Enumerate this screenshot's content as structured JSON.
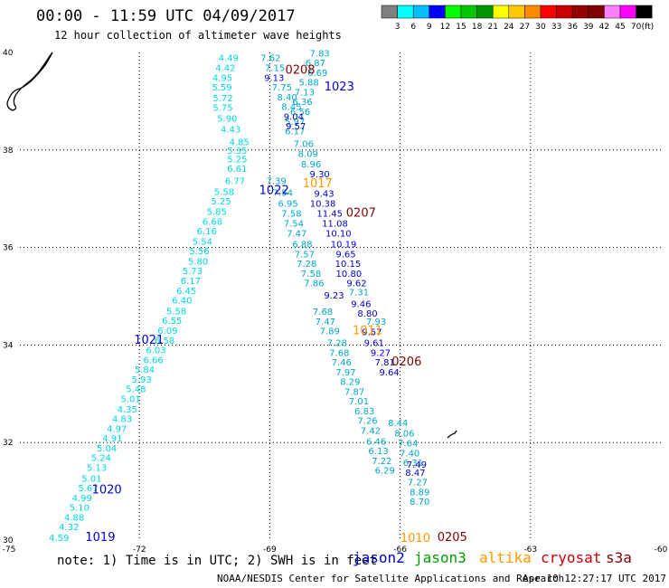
{
  "title": "00:00 - 11:59 UTC 04/09/2017",
  "subtitle": "12 hour collection of altimeter wave heights",
  "note": "note: 1) Time is in UTC; 2) SWH is in feet",
  "credit": "NOAA/NESDIS Center for Satellite Applications and Research",
  "timestamp": "Apr 10 12:27:17 UTC 2017",
  "color_scale": {
    "unit": "(ft)",
    "colors": [
      "#808080",
      "#00ffff",
      "#00bfff",
      "#0000ff",
      "#00ff00",
      "#00c800",
      "#009600",
      "#ffff00",
      "#ffc800",
      "#ff8c00",
      "#ff0000",
      "#c80000",
      "#960000",
      "#800000",
      "#ff80ff",
      "#ff00ff",
      "#000000"
    ],
    "labels": [
      "3",
      "6",
      "9",
      "12",
      "15",
      "18",
      "21",
      "24",
      "27",
      "30",
      "33",
      "36",
      "39",
      "42",
      "45",
      "70"
    ]
  },
  "satellites": [
    {
      "name": "jason2",
      "color": "#0000cc"
    },
    {
      "name": "jason3",
      "color": "#00a000"
    },
    {
      "name": "altika",
      "color": "#ff9900"
    },
    {
      "name": "cryosat",
      "color": "#cc0000"
    },
    {
      "name": "s3a",
      "color": "#800000"
    }
  ],
  "map": {
    "lon_ticks": [
      "-75",
      "-72",
      "-69",
      "-66",
      "-63",
      "-60"
    ],
    "lat_ticks": [
      "30",
      "32",
      "34",
      "36",
      "38",
      "40"
    ]
  },
  "tracks": [
    {
      "name": "track-cyan-descending",
      "color": "#00d8e0",
      "labels": [
        {
          "t": "4.49",
          "lon": -69.95,
          "lat": 39.82
        },
        {
          "t": "4.42",
          "lon": -70.02,
          "lat": 39.62
        },
        {
          "t": "4.95",
          "lon": -70.09,
          "lat": 39.42
        },
        {
          "t": "5.59",
          "lon": -70.1,
          "lat": 39.22
        },
        {
          "t": "5.72",
          "lon": -70.08,
          "lat": 39.0
        },
        {
          "t": "5.75",
          "lon": -70.08,
          "lat": 38.8
        },
        {
          "t": "5.90",
          "lon": -69.98,
          "lat": 38.58
        },
        {
          "t": "4.43",
          "lon": -69.9,
          "lat": 38.36
        },
        {
          "t": "4.85",
          "lon": -69.7,
          "lat": 38.1
        },
        {
          "t": "5.35",
          "lon": -69.75,
          "lat": 37.92
        },
        {
          "t": "5.25",
          "lon": -69.75,
          "lat": 37.75
        },
        {
          "t": "6.61",
          "lon": -69.75,
          "lat": 37.55
        },
        {
          "t": "6.77",
          "lon": -69.8,
          "lat": 37.3
        },
        {
          "t": "5.58",
          "lon": -70.05,
          "lat": 37.08
        },
        {
          "t": "5.25",
          "lon": -70.12,
          "lat": 36.88
        },
        {
          "t": "5.85",
          "lon": -70.22,
          "lat": 36.67
        },
        {
          "t": "6.68",
          "lon": -70.32,
          "lat": 36.47
        },
        {
          "t": "6.16",
          "lon": -70.45,
          "lat": 36.27
        },
        {
          "t": "5.54",
          "lon": -70.55,
          "lat": 36.06
        },
        {
          "t": "5.56",
          "lon": -70.62,
          "lat": 35.86
        },
        {
          "t": "5.80",
          "lon": -70.65,
          "lat": 35.65
        },
        {
          "t": "5.73",
          "lon": -70.78,
          "lat": 35.45
        },
        {
          "t": "6.17",
          "lon": -70.82,
          "lat": 35.25
        },
        {
          "t": "6.45",
          "lon": -70.92,
          "lat": 35.05
        },
        {
          "t": "6.40",
          "lon": -71.02,
          "lat": 34.85
        },
        {
          "t": "5.58",
          "lon": -71.15,
          "lat": 34.63
        },
        {
          "t": "6.55",
          "lon": -71.25,
          "lat": 34.43
        },
        {
          "t": "6.09",
          "lon": -71.35,
          "lat": 34.23
        },
        {
          "t": "6.58",
          "lon": -71.42,
          "lat": 34.03
        },
        {
          "t": "6.03",
          "lon": -71.62,
          "lat": 33.83
        },
        {
          "t": "6.66",
          "lon": -71.68,
          "lat": 33.63
        },
        {
          "t": "5.84",
          "lon": -71.88,
          "lat": 33.43
        },
        {
          "t": "5.93",
          "lon": -71.95,
          "lat": 33.23
        },
        {
          "t": "5.48",
          "lon": -72.08,
          "lat": 33.03
        },
        {
          "t": "5.01",
          "lon": -72.2,
          "lat": 32.83
        },
        {
          "t": "4.35",
          "lon": -72.28,
          "lat": 32.62
        },
        {
          "t": "4.83",
          "lon": -72.4,
          "lat": 32.42
        },
        {
          "t": "4.97",
          "lon": -72.52,
          "lat": 32.22
        },
        {
          "t": "4.91",
          "lon": -72.62,
          "lat": 32.02
        },
        {
          "t": "5.04",
          "lon": -72.75,
          "lat": 31.82
        },
        {
          "t": "5.24",
          "lon": -72.88,
          "lat": 31.62
        },
        {
          "t": "5.13",
          "lon": -72.98,
          "lat": 31.42
        },
        {
          "t": "5.01",
          "lon": -73.1,
          "lat": 31.2
        },
        {
          "t": "5.67",
          "lon": -73.18,
          "lat": 31.0
        },
        {
          "t": "4.99",
          "lon": -73.32,
          "lat": 30.8
        },
        {
          "t": "5.10",
          "lon": -73.38,
          "lat": 30.6
        },
        {
          "t": "4.88",
          "lon": -73.5,
          "lat": 30.4
        },
        {
          "t": "4.32",
          "lon": -73.62,
          "lat": 30.2
        },
        {
          "t": "4.59",
          "lon": -73.85,
          "lat": 29.98
        }
      ]
    },
    {
      "name": "track-cyan-ascending",
      "color": "#00a8c8",
      "labels": [
        {
          "t": "7.62",
          "lon": -68.98,
          "lat": 39.82
        },
        {
          "t": "7.15",
          "lon": -68.88,
          "lat": 39.62
        },
        {
          "t": "7.75",
          "lon": -68.72,
          "lat": 39.22
        },
        {
          "t": "8.40",
          "lon": -68.6,
          "lat": 39.02
        },
        {
          "t": "8.45",
          "lon": -68.5,
          "lat": 38.82
        },
        {
          "t": "7.06",
          "lon": -68.22,
          "lat": 38.06
        },
        {
          "t": "8.09",
          "lon": -68.12,
          "lat": 37.86
        },
        {
          "t": "8.96",
          "lon": -68.05,
          "lat": 37.64
        },
        {
          "t": "7.39",
          "lon": -68.85,
          "lat": 37.3
        },
        {
          "t": "7.54",
          "lon": -68.7,
          "lat": 37.06
        },
        {
          "t": "6.95",
          "lon": -68.58,
          "lat": 36.84
        },
        {
          "t": "7.58",
          "lon": -68.5,
          "lat": 36.63
        },
        {
          "t": "7.54",
          "lon": -68.45,
          "lat": 36.43
        },
        {
          "t": "7.47",
          "lon": -68.38,
          "lat": 36.22
        },
        {
          "t": "6.88",
          "lon": -68.25,
          "lat": 36.0
        },
        {
          "t": "7.57",
          "lon": -68.2,
          "lat": 35.8
        },
        {
          "t": "7.28",
          "lon": -68.15,
          "lat": 35.6
        },
        {
          "t": "7.58",
          "lon": -68.05,
          "lat": 35.4
        },
        {
          "t": "7.86",
          "lon": -67.98,
          "lat": 35.2
        },
        {
          "t": "7.68",
          "lon": -67.78,
          "lat": 34.62
        },
        {
          "t": "7.47",
          "lon": -67.72,
          "lat": 34.42
        },
        {
          "t": "7.89",
          "lon": -67.62,
          "lat": 34.22
        },
        {
          "t": "7.28",
          "lon": -67.45,
          "lat": 33.98
        },
        {
          "t": "7.68",
          "lon": -67.4,
          "lat": 33.78
        },
        {
          "t": "7.46",
          "lon": -67.35,
          "lat": 33.58
        },
        {
          "t": "7.97",
          "lon": -67.25,
          "lat": 33.38
        },
        {
          "t": "8.29",
          "lon": -67.15,
          "lat": 33.18
        },
        {
          "t": "7.87",
          "lon": -67.05,
          "lat": 32.98
        },
        {
          "t": "7.01",
          "lon": -66.95,
          "lat": 32.78
        },
        {
          "t": "6.83",
          "lon": -66.82,
          "lat": 32.58
        },
        {
          "t": "7.26",
          "lon": -66.75,
          "lat": 32.38
        },
        {
          "t": "7.42",
          "lon": -66.68,
          "lat": 32.18
        },
        {
          "t": "6.46",
          "lon": -66.55,
          "lat": 31.96
        },
        {
          "t": "6.13",
          "lon": -66.5,
          "lat": 31.76
        },
        {
          "t": "7.22",
          "lon": -66.42,
          "lat": 31.56
        },
        {
          "t": "6.29",
          "lon": -66.35,
          "lat": 31.36
        },
        {
          "t": "7.83",
          "lon": -67.85,
          "lat": 39.92
        },
        {
          "t": "6.87",
          "lon": -67.95,
          "lat": 39.72
        },
        {
          "t": "6.69",
          "lon": -67.9,
          "lat": 39.52
        },
        {
          "t": "5.88",
          "lon": -68.1,
          "lat": 39.32
        },
        {
          "t": "7.13",
          "lon": -68.2,
          "lat": 39.12
        },
        {
          "t": "6.36",
          "lon": -68.25,
          "lat": 38.92
        },
        {
          "t": "6.56",
          "lon": -68.3,
          "lat": 38.72
        },
        {
          "t": "5.97",
          "lon": -68.42,
          "lat": 38.52
        },
        {
          "t": "6.17",
          "lon": -68.42,
          "lat": 38.32
        },
        {
          "t": "8.06",
          "lon": -65.9,
          "lat": 32.12
        },
        {
          "t": "7.64",
          "lon": -65.82,
          "lat": 31.92
        },
        {
          "t": "7.40",
          "lon": -65.78,
          "lat": 31.72
        },
        {
          "t": "6.31",
          "lon": -65.7,
          "lat": 31.52
        },
        {
          "t": "7.27",
          "lon": -65.6,
          "lat": 31.12
        },
        {
          "t": "8.89",
          "lon": -65.55,
          "lat": 30.92
        },
        {
          "t": "8.70",
          "lon": -65.55,
          "lat": 30.72
        },
        {
          "t": "8.44",
          "lon": -66.05,
          "lat": 32.34
        },
        {
          "t": "7.31",
          "lon": -66.95,
          "lat": 35.02
        },
        {
          "t": "7.93",
          "lon": -66.55,
          "lat": 34.42
        }
      ]
    },
    {
      "name": "track-blue-jason2",
      "color": "#0000cc",
      "labels": [
        {
          "t": "9.13",
          "lon": -68.9,
          "lat": 39.42
        },
        {
          "t": "9.04",
          "lon": -68.45,
          "lat": 38.62
        },
        {
          "t": "9.57",
          "lon": -68.4,
          "lat": 38.42
        },
        {
          "t": "9.30",
          "lon": -67.85,
          "lat": 37.44
        },
        {
          "t": "9.43",
          "lon": -67.75,
          "lat": 37.04
        },
        {
          "t": "10.38",
          "lon": -67.78,
          "lat": 36.84
        },
        {
          "t": "11.45",
          "lon": -67.62,
          "lat": 36.63
        },
        {
          "t": "11.08",
          "lon": -67.5,
          "lat": 36.43
        },
        {
          "t": "10.10",
          "lon": -67.42,
          "lat": 36.22
        },
        {
          "t": "10.19",
          "lon": -67.3,
          "lat": 36.0
        },
        {
          "t": "9.65",
          "lon": -67.25,
          "lat": 35.8
        },
        {
          "t": "10.15",
          "lon": -67.2,
          "lat": 35.6
        },
        {
          "t": "10.80",
          "lon": -67.18,
          "lat": 35.4
        },
        {
          "t": "9.62",
          "lon": -67.0,
          "lat": 35.2
        },
        {
          "t": "9.23",
          "lon": -67.52,
          "lat": 34.95
        },
        {
          "t": "9.46",
          "lon": -66.9,
          "lat": 34.78
        },
        {
          "t": "8.80",
          "lon": -66.75,
          "lat": 34.58
        },
        {
          "t": "9.57",
          "lon": -66.65,
          "lat": 34.2
        },
        {
          "t": "9.61",
          "lon": -66.6,
          "lat": 33.98
        },
        {
          "t": "9.27",
          "lon": -66.45,
          "lat": 33.78
        },
        {
          "t": "7.81",
          "lon": -66.35,
          "lat": 33.58
        },
        {
          "t": "9.64",
          "lon": -66.25,
          "lat": 33.38
        },
        {
          "t": "8.47",
          "lon": -65.65,
          "lat": 31.32
        },
        {
          "t": "7.49",
          "lon": -65.62,
          "lat": 31.48
        }
      ]
    }
  ],
  "pass_labels": [
    {
      "t": "0208",
      "lon": -68.3,
      "lat": 39.56,
      "color": "#800000"
    },
    {
      "t": "1023",
      "lon": -67.4,
      "lat": 39.22,
      "color": "#0000cc"
    },
    {
      "t": "1017",
      "lon": -67.9,
      "lat": 37.24,
      "color": "#ff9900"
    },
    {
      "t": "1022",
      "lon": -68.9,
      "lat": 37.1,
      "color": "#0000cc"
    },
    {
      "t": "0207",
      "lon": -66.9,
      "lat": 36.63,
      "color": "#800000"
    },
    {
      "t": "1021",
      "lon": -71.78,
      "lat": 34.03,
      "color": "#0000cc"
    },
    {
      "t": "1011",
      "lon": -66.75,
      "lat": 34.22,
      "color": "#ff9900"
    },
    {
      "t": "0206",
      "lon": -65.85,
      "lat": 33.58,
      "color": "#800000"
    },
    {
      "t": "1020",
      "lon": -72.75,
      "lat": 30.96,
      "color": "#0000cc"
    },
    {
      "t": "1019",
      "lon": -72.9,
      "lat": 29.98,
      "color": "#0000cc"
    },
    {
      "t": "1010",
      "lon": -65.65,
      "lat": 29.96,
      "color": "#ff9900"
    },
    {
      "t": "0205",
      "lon": -64.8,
      "lat": 29.98,
      "color": "#800000"
    }
  ]
}
